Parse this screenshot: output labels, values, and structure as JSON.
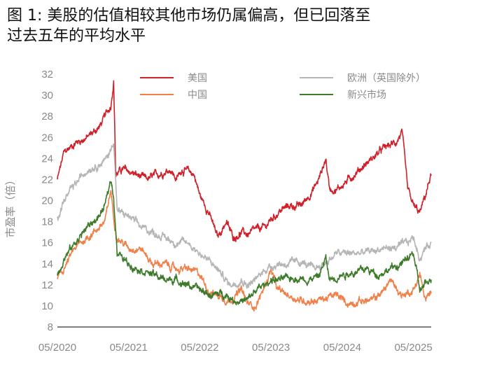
{
  "figure": {
    "title_line1": "图 1:  美股的估值相较其他市场仍属偏高，但已回落至",
    "title_line2": "过去五年的平均水平"
  },
  "chart_data": {
    "type": "line",
    "ylabel": "市盈率（倍）",
    "ylim": [
      8,
      32
    ],
    "yticks": [
      8,
      10,
      12,
      14,
      16,
      18,
      20,
      22,
      24,
      26,
      28,
      30,
      32
    ],
    "x_tick_labels": [
      "05/2020",
      "05/2021",
      "05/2022",
      "05/2023",
      "05/2024",
      "05/2025"
    ],
    "x_tick_times": [
      2020.33,
      2021.33,
      2022.33,
      2023.33,
      2024.33,
      2025.33
    ],
    "xlim": [
      2020.33,
      2025.58
    ],
    "legend_position": "top",
    "series": [
      {
        "name": "美国",
        "color": "#d0202a",
        "points": [
          [
            2020.33,
            22.0
          ],
          [
            2020.42,
            24.5
          ],
          [
            2020.58,
            25.5
          ],
          [
            2020.75,
            26.0
          ],
          [
            2020.92,
            27.0
          ],
          [
            2021.0,
            28.0
          ],
          [
            2021.08,
            29.0
          ],
          [
            2021.12,
            31.5
          ],
          [
            2021.15,
            22.5
          ],
          [
            2021.25,
            23.0
          ],
          [
            2021.42,
            22.5
          ],
          [
            2021.58,
            22.0
          ],
          [
            2021.75,
            22.5
          ],
          [
            2021.92,
            23.0
          ],
          [
            2022.0,
            22.0
          ],
          [
            2022.08,
            23.0
          ],
          [
            2022.25,
            22.5
          ],
          [
            2022.33,
            20.5
          ],
          [
            2022.45,
            19.0
          ],
          [
            2022.58,
            16.5
          ],
          [
            2022.7,
            18.0
          ],
          [
            2022.8,
            16.5
          ],
          [
            2022.92,
            17.0
          ],
          [
            2023.0,
            16.8
          ],
          [
            2023.12,
            17.2
          ],
          [
            2023.25,
            17.5
          ],
          [
            2023.33,
            18.2
          ],
          [
            2023.45,
            19.0
          ],
          [
            2023.58,
            19.5
          ],
          [
            2023.75,
            19.5
          ],
          [
            2023.92,
            21.0
          ],
          [
            2024.0,
            22.0
          ],
          [
            2024.1,
            24.0
          ],
          [
            2024.15,
            21.2
          ],
          [
            2024.25,
            21.0
          ],
          [
            2024.42,
            22.0
          ],
          [
            2024.58,
            23.0
          ],
          [
            2024.75,
            24.0
          ],
          [
            2024.92,
            25.0
          ],
          [
            2025.08,
            25.5
          ],
          [
            2025.17,
            26.5
          ],
          [
            2025.25,
            21.0
          ],
          [
            2025.33,
            19.5
          ],
          [
            2025.42,
            18.8
          ],
          [
            2025.5,
            20.5
          ],
          [
            2025.58,
            22.5
          ]
        ]
      },
      {
        "name": "中国",
        "color": "#f0804a",
        "points": [
          [
            2020.33,
            12.5
          ],
          [
            2020.42,
            13.5
          ],
          [
            2020.58,
            15.5
          ],
          [
            2020.75,
            16.5
          ],
          [
            2020.92,
            17.5
          ],
          [
            2021.0,
            18.0
          ],
          [
            2021.08,
            21.0
          ],
          [
            2021.12,
            18.5
          ],
          [
            2021.17,
            16.5
          ],
          [
            2021.33,
            15.5
          ],
          [
            2021.5,
            15.5
          ],
          [
            2021.67,
            14.0
          ],
          [
            2021.83,
            14.0
          ],
          [
            2022.0,
            13.5
          ],
          [
            2022.17,
            13.5
          ],
          [
            2022.33,
            13.0
          ],
          [
            2022.45,
            11.5
          ],
          [
            2022.58,
            11.0
          ],
          [
            2022.75,
            10.5
          ],
          [
            2022.92,
            11.5
          ],
          [
            2023.0,
            10.2
          ],
          [
            2023.12,
            10.0
          ],
          [
            2023.25,
            12.0
          ],
          [
            2023.33,
            13.5
          ],
          [
            2023.42,
            11.5
          ],
          [
            2023.58,
            11.0
          ],
          [
            2023.75,
            10.5
          ],
          [
            2023.92,
            10.5
          ],
          [
            2024.08,
            10.7
          ],
          [
            2024.25,
            11.0
          ],
          [
            2024.42,
            10.2
          ],
          [
            2024.58,
            10.5
          ],
          [
            2024.75,
            10.5
          ],
          [
            2024.92,
            11.5
          ],
          [
            2025.0,
            12.5
          ],
          [
            2025.17,
            11.0
          ],
          [
            2025.33,
            11.5
          ],
          [
            2025.42,
            13.0
          ],
          [
            2025.5,
            10.5
          ],
          [
            2025.58,
            11.2
          ]
        ]
      },
      {
        "name": "欧洲（英国除外）",
        "color": "#b5b5b5",
        "points": [
          [
            2020.33,
            18.5
          ],
          [
            2020.42,
            20.0
          ],
          [
            2020.58,
            21.5
          ],
          [
            2020.75,
            23.0
          ],
          [
            2020.92,
            23.5
          ],
          [
            2021.0,
            23.8
          ],
          [
            2021.08,
            24.8
          ],
          [
            2021.12,
            25.8
          ],
          [
            2021.17,
            19.0
          ],
          [
            2021.33,
            18.5
          ],
          [
            2021.5,
            17.5
          ],
          [
            2021.67,
            17.0
          ],
          [
            2021.83,
            16.5
          ],
          [
            2022.0,
            16.0
          ],
          [
            2022.17,
            16.0
          ],
          [
            2022.33,
            15.0
          ],
          [
            2022.5,
            14.0
          ],
          [
            2022.58,
            13.5
          ],
          [
            2022.75,
            12.0
          ],
          [
            2022.92,
            12.5
          ],
          [
            2023.0,
            12.0
          ],
          [
            2023.12,
            12.5
          ],
          [
            2023.25,
            13.5
          ],
          [
            2023.42,
            14.0
          ],
          [
            2023.58,
            14.0
          ],
          [
            2023.75,
            14.2
          ],
          [
            2023.92,
            13.5
          ],
          [
            2024.08,
            14.0
          ],
          [
            2024.25,
            15.0
          ],
          [
            2024.42,
            15.0
          ],
          [
            2024.58,
            15.0
          ],
          [
            2024.75,
            15.2
          ],
          [
            2024.92,
            15.5
          ],
          [
            2025.08,
            15.5
          ],
          [
            2025.25,
            16.0
          ],
          [
            2025.33,
            16.5
          ],
          [
            2025.42,
            14.5
          ],
          [
            2025.5,
            15.5
          ],
          [
            2025.58,
            16.0
          ]
        ]
      },
      {
        "name": "新兴市场",
        "color": "#3d7a2a",
        "points": [
          [
            2020.33,
            13.0
          ],
          [
            2020.42,
            14.5
          ],
          [
            2020.58,
            16.0
          ],
          [
            2020.75,
            17.5
          ],
          [
            2020.92,
            18.5
          ],
          [
            2021.0,
            19.5
          ],
          [
            2021.08,
            22.0
          ],
          [
            2021.12,
            20.5
          ],
          [
            2021.17,
            15.0
          ],
          [
            2021.33,
            14.0
          ],
          [
            2021.5,
            13.5
          ],
          [
            2021.67,
            13.0
          ],
          [
            2021.83,
            12.5
          ],
          [
            2022.0,
            12.5
          ],
          [
            2022.17,
            12.0
          ],
          [
            2022.33,
            11.5
          ],
          [
            2022.5,
            11.0
          ],
          [
            2022.67,
            11.2
          ],
          [
            2022.83,
            10.5
          ],
          [
            2023.0,
            10.5
          ],
          [
            2023.12,
            11.5
          ],
          [
            2023.25,
            12.0
          ],
          [
            2023.33,
            12.5
          ],
          [
            2023.5,
            12.5
          ],
          [
            2023.67,
            12.7
          ],
          [
            2023.83,
            12.5
          ],
          [
            2024.0,
            12.8
          ],
          [
            2024.1,
            14.5
          ],
          [
            2024.15,
            12.5
          ],
          [
            2024.33,
            13.0
          ],
          [
            2024.5,
            13.2
          ],
          [
            2024.67,
            13.5
          ],
          [
            2024.83,
            13.0
          ],
          [
            2025.0,
            13.5
          ],
          [
            2025.17,
            14.0
          ],
          [
            2025.33,
            15.0
          ],
          [
            2025.42,
            11.5
          ],
          [
            2025.5,
            12.0
          ],
          [
            2025.58,
            12.5
          ]
        ]
      }
    ]
  }
}
